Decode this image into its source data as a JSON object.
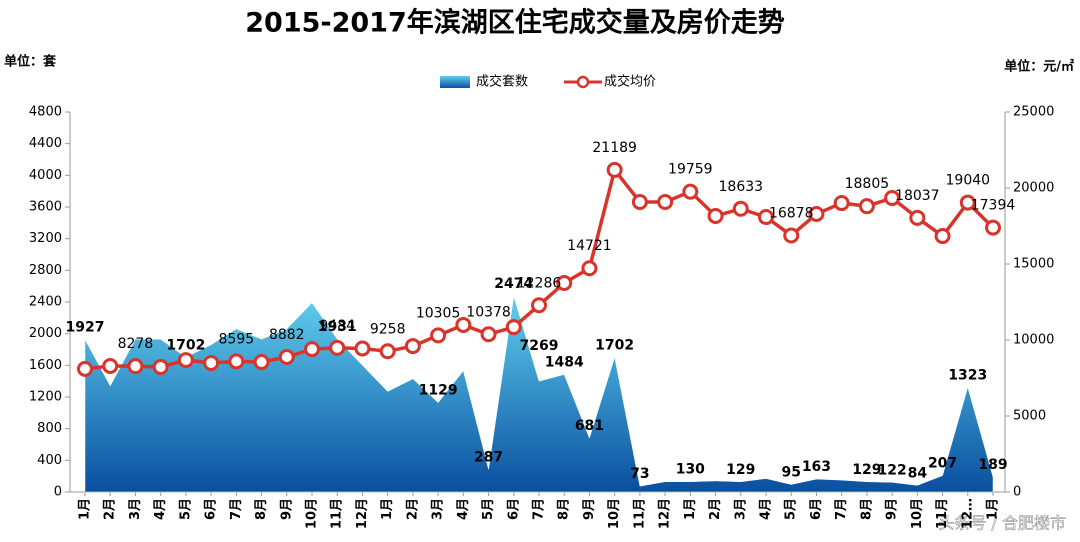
{
  "chart_data": {
    "type": "area-line",
    "title": "2015-2017年滨湖区住宅成交量及房价走势",
    "y_unit": "单位：套",
    "y2_unit": "单位：元/㎡",
    "watermark": "头条号 / 合肥楼市",
    "categories": [
      "1月",
      "2月",
      "3月",
      "4月",
      "5月",
      "6月",
      "7月",
      "8月",
      "9月",
      "10月",
      "11月",
      "12月",
      "1月",
      "2月",
      "3月",
      "4月",
      "5月",
      "6月",
      "7月",
      "8月",
      "9月",
      "10月",
      "11月",
      "12月",
      "1月",
      "2月",
      "3月",
      "4月",
      "5月",
      "6月",
      "7月",
      "8月",
      "9月",
      "10月",
      "11月",
      "12…",
      "1月"
    ],
    "ylim": [
      0,
      4800
    ],
    "yticks": [
      0,
      400,
      800,
      1200,
      1600,
      2000,
      2400,
      2800,
      3200,
      3600,
      4000,
      4400,
      4800
    ],
    "y2lim": [
      0,
      25000
    ],
    "y2ticks": [
      0,
      5000,
      10000,
      15000,
      20000,
      25000
    ],
    "annotations": [
      "7269"
    ],
    "series": [
      {
        "name": "成交套数",
        "type": "area",
        "color": "#1a8fd0",
        "values": [
          1927,
          1340,
          1930,
          1930,
          1702,
          1860,
          2060,
          1930,
          2060,
          2390,
          1931,
          1600,
          1270,
          1430,
          1129,
          1530,
          287,
          2474,
          1400,
          1484,
          681,
          1702,
          73,
          130,
          130,
          140,
          129,
          170,
          95,
          163,
          150,
          129,
          122,
          84,
          207,
          1323,
          189
        ],
        "value_labels": [
          "1927",
          null,
          null,
          null,
          "1702",
          null,
          null,
          null,
          null,
          null,
          "1931",
          null,
          null,
          null,
          "1129",
          null,
          "287",
          "2474",
          null,
          "1484",
          "681",
          "1702",
          "73",
          null,
          "130",
          null,
          "129",
          null,
          "95",
          "163",
          null,
          "129",
          "122",
          "84",
          "207",
          "1323",
          "189"
        ]
      },
      {
        "name": "成交均价",
        "type": "line",
        "axis": "y2",
        "color": "#d9342b",
        "values": [
          8100,
          8290,
          8278,
          8220,
          8680,
          8490,
          8595,
          8550,
          8882,
          9400,
          9484,
          9440,
          9258,
          9600,
          10305,
          10990,
          10378,
          10850,
          12286,
          13750,
          14721,
          21189,
          19080,
          19080,
          19759,
          18160,
          18633,
          18090,
          16878,
          18290,
          19010,
          18805,
          19340,
          18037,
          16840,
          19040,
          17394
        ],
        "value_labels": [
          null,
          null,
          "8278",
          null,
          null,
          null,
          "8595",
          null,
          "8882",
          null,
          "9484",
          null,
          "9258",
          null,
          "10305",
          null,
          "10378",
          null,
          "12286",
          null,
          "14721",
          "21189",
          null,
          null,
          "19759",
          null,
          "18633",
          null,
          "16878",
          null,
          null,
          "18805",
          null,
          "18037",
          null,
          "19040",
          "17394"
        ]
      }
    ]
  }
}
